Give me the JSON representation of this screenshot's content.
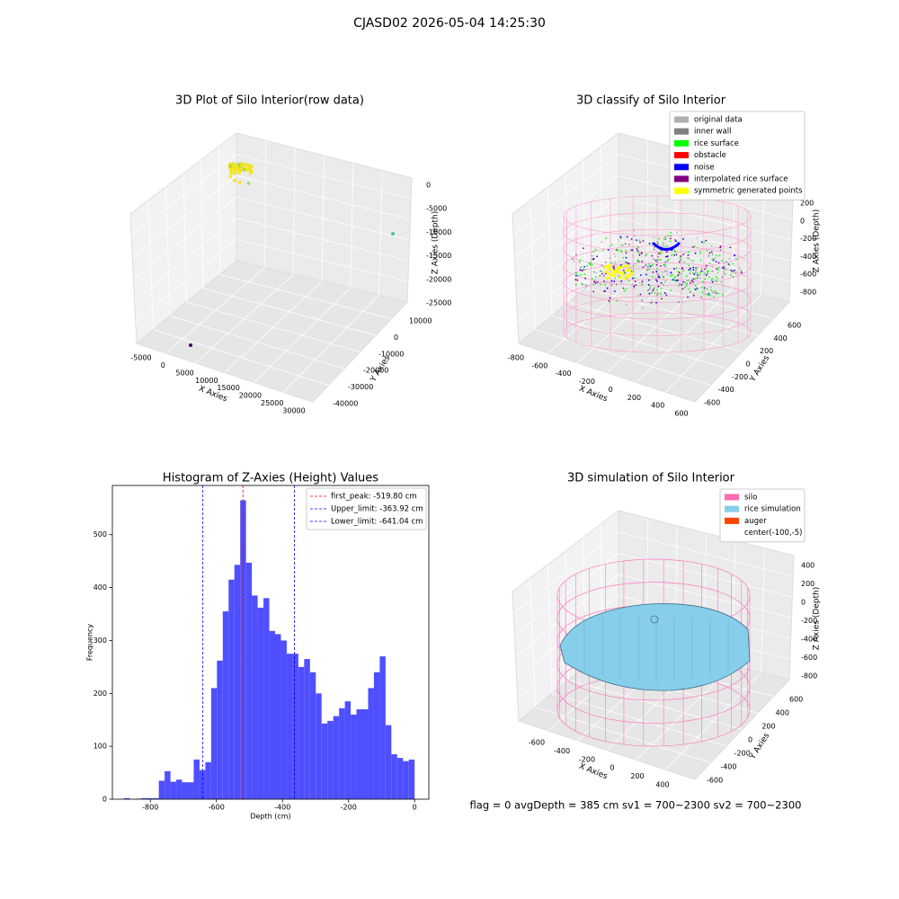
{
  "title": "CJASD02 2026-05-04 14:25:30",
  "footer": "flag = 0     avgDepth = 385 cm  sv1 = 700~2300  sv2 = 700~2300",
  "chart_data": [
    {
      "type": "scatter3d",
      "title": "3D Plot of Silo Interior(row data)",
      "xlabel": "X Axies",
      "ylabel": "Y Axies",
      "zlabel": "Z Axies (Depth)",
      "xticks": [
        -5000,
        0,
        5000,
        10000,
        15000,
        20000,
        25000,
        30000
      ],
      "yticks": [
        10000,
        0,
        -10000,
        -20000,
        -30000,
        -40000
      ],
      "zticks": [
        0,
        -5000,
        -10000,
        -15000,
        -20000,
        -25000
      ]
    },
    {
      "type": "scatter3d",
      "title": "3D classify of Silo Interior",
      "xlabel": "X Axies",
      "ylabel": "Y Axies",
      "zlabel": "Z Axies (Depth)",
      "xticks": [
        -800,
        -600,
        -400,
        -200,
        0,
        200,
        400,
        600
      ],
      "yticks": [
        600,
        400,
        200,
        0,
        -200,
        -400,
        -600
      ],
      "zticks": [
        200,
        0,
        -200,
        -400,
        -600,
        -800
      ],
      "legend": [
        {
          "name": "original data",
          "color": "#b0b0b0"
        },
        {
          "name": "inner wall",
          "color": "#808080"
        },
        {
          "name": "rice surface",
          "color": "#00ff00"
        },
        {
          "name": "obstacle",
          "color": "#ff0000"
        },
        {
          "name": "noise",
          "color": "#0000ff"
        },
        {
          "name": "interpolated rice surface",
          "color": "#800080"
        },
        {
          "name": "symmetric generated points",
          "color": "#ffff00"
        }
      ]
    },
    {
      "type": "histogram",
      "title": "Histogram of Z-Axies (Height) Values",
      "xlabel": "Depth (cm)",
      "ylabel": "Frequency",
      "color": "#4f4fff",
      "bins": [
        -880,
        -862.4,
        -844.8,
        -827.2,
        -809.6,
        -792,
        -774.4,
        -756.8,
        -739.2,
        -721.6,
        -704,
        -686.4,
        -668.8,
        -651.2,
        -633.6,
        -616,
        -598.4,
        -580.8,
        -563.2,
        -545.6,
        -528,
        -510.4,
        -492.8,
        -475.2,
        -457.6,
        -440,
        -422.4,
        -404.8,
        -387.2,
        -369.6,
        -352,
        -334.4,
        -316.8,
        -299.2,
        -281.6,
        -264,
        -246.4,
        -228.8,
        -211.2,
        -193.6,
        -176,
        -158.4,
        -140.8,
        -123.2,
        -105.6,
        -88,
        -70.4,
        -52.8,
        -35.2,
        -17.6,
        0
      ],
      "values": [
        2,
        0,
        1,
        2,
        2,
        2,
        35,
        53,
        33,
        37,
        32,
        32,
        75,
        55,
        70,
        210,
        262,
        355,
        415,
        443,
        565,
        447,
        385,
        362,
        380,
        318,
        312,
        300,
        275,
        275,
        250,
        265,
        240,
        200,
        143,
        148,
        157,
        172,
        185,
        160,
        170,
        170,
        210,
        240,
        270,
        140,
        85,
        78,
        72,
        75
      ],
      "xlim": [
        -915,
        43
      ],
      "ylim": [
        0,
        593
      ],
      "xticks": [
        -800,
        -600,
        -400,
        -200,
        0
      ],
      "yticks": [
        0,
        100,
        200,
        300,
        400,
        500
      ],
      "vlines": [
        {
          "label": "first_peak: -519.80 cm",
          "value": -519.8,
          "color": "#ff0000"
        },
        {
          "label": "Upper_limit: -363.92 cm",
          "value": -363.92,
          "color": "#0000ff"
        },
        {
          "label": "Lower_limit: -641.04 cm",
          "value": -641.04,
          "color": "#0000ff"
        }
      ],
      "legend_position": "upper right"
    },
    {
      "type": "surface3d",
      "title": "3D simulation of Silo Interior",
      "xlabel": "X Axies",
      "ylabel": "Y Axies",
      "zlabel": "Z Axies (Depth)",
      "xticks": [
        -600,
        -400,
        -200,
        0,
        200,
        400
      ],
      "yticks": [
        600,
        400,
        200,
        0,
        -200,
        -400,
        -600
      ],
      "zticks": [
        400,
        200,
        0,
        -200,
        -400,
        -600,
        -800
      ],
      "legend": [
        {
          "name": "silo",
          "color": "#ff69b4"
        },
        {
          "name": "rice simulation",
          "color": "#87ceeb"
        },
        {
          "name": "auger",
          "color": "#ff4500"
        },
        {
          "name": "center(-100,-5)"
        }
      ]
    }
  ]
}
